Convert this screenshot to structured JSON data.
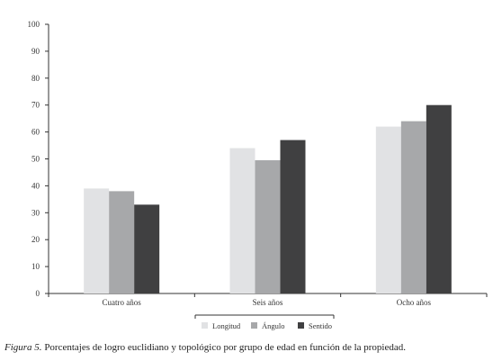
{
  "chart_data": {
    "type": "bar",
    "categories": [
      "Cuatro años",
      "Seis años",
      "Ocho años"
    ],
    "series": [
      {
        "name": "Longitud",
        "values": [
          39,
          54,
          62
        ],
        "color": "#e1e2e4"
      },
      {
        "name": "Ángulo",
        "values": [
          38,
          49.5,
          64
        ],
        "color": "#a7a8aa"
      },
      {
        "name": "Sentido",
        "values": [
          33,
          57,
          70
        ],
        "color": "#404041"
      }
    ],
    "ylim": [
      0,
      100
    ],
    "yticks": [
      "0",
      "10",
      "20",
      "30",
      "40",
      "50",
      "60",
      "70",
      "80",
      "90",
      "100"
    ],
    "legend_position": "bottom-center",
    "grid": false
  },
  "caption": {
    "figure_label": "Figura 5.",
    "text": " Porcentajes de logro euclidiano y topológico por grupo de edad en función de la propiedad."
  }
}
